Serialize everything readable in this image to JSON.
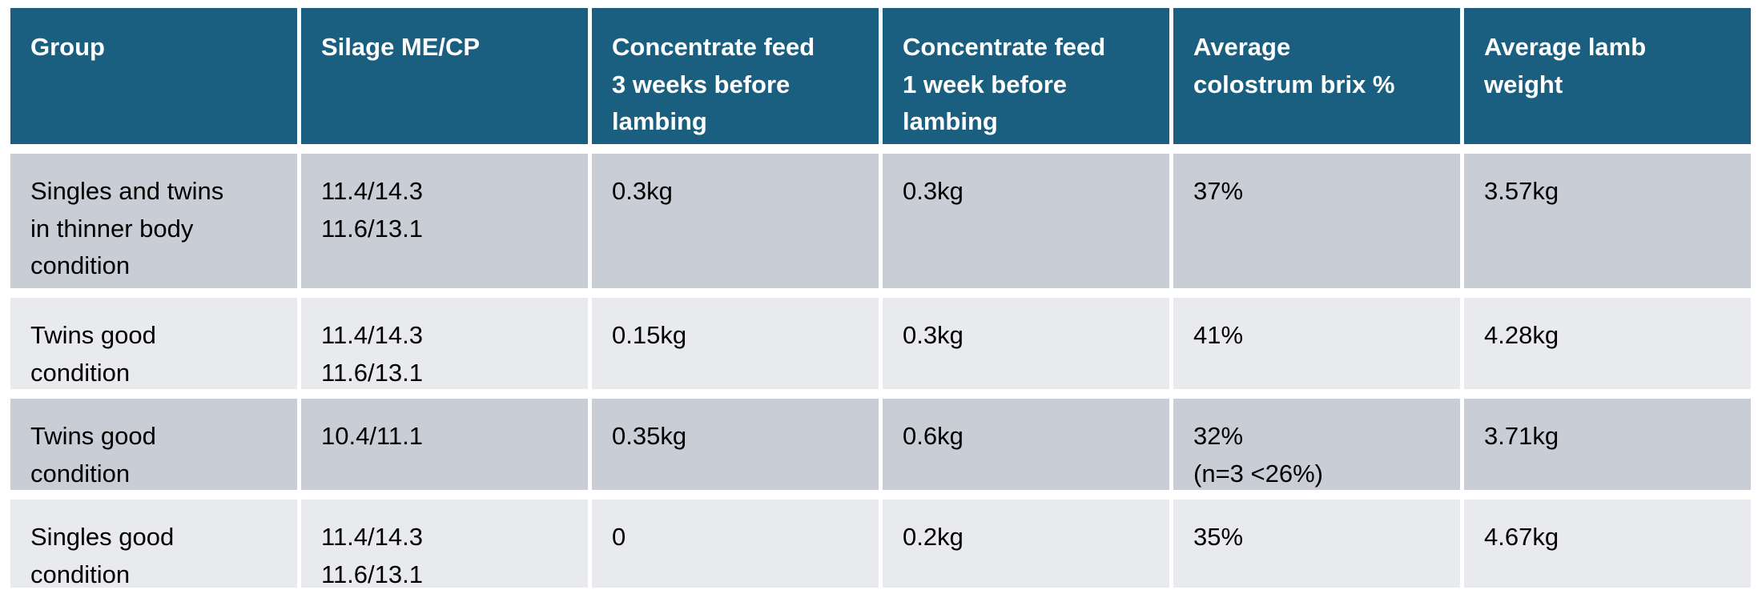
{
  "colors": {
    "header_bg": "#1A5F7F",
    "header_text": "#FFFFFF",
    "row_odd_bg": "#C9CED6",
    "row_even_bg": "#E9EAED",
    "body_text": "#000000",
    "page_bg": "#FFFFFF"
  },
  "chart_data": {
    "type": "table",
    "columns": [
      "Group",
      "Silage ME/CP",
      "Concentrate feed 3 weeks before lambing",
      "Concentrate feed 1 week before lambing",
      "Average colostrum brix %",
      "Average lamb weight"
    ],
    "rows": [
      [
        "Singles and twins in thinner body condition",
        "11.4/14.3\n11.6/13.1",
        "0.3kg",
        "0.3kg",
        "37%",
        "3.57kg"
      ],
      [
        "Twins good condition",
        "11.4/14.3\n11.6/13.1",
        "0.15kg",
        "0.3kg",
        "41%",
        "4.28kg"
      ],
      [
        "Twins good condition",
        "10.4/11.1",
        "0.35kg",
        "0.6kg",
        "32%\n(n=3 <26%)",
        "3.71kg"
      ],
      [
        "Singles good condition",
        "11.4/14.3\n11.6/13.1",
        "0",
        "0.2kg",
        "35%",
        "4.67kg"
      ]
    ]
  }
}
